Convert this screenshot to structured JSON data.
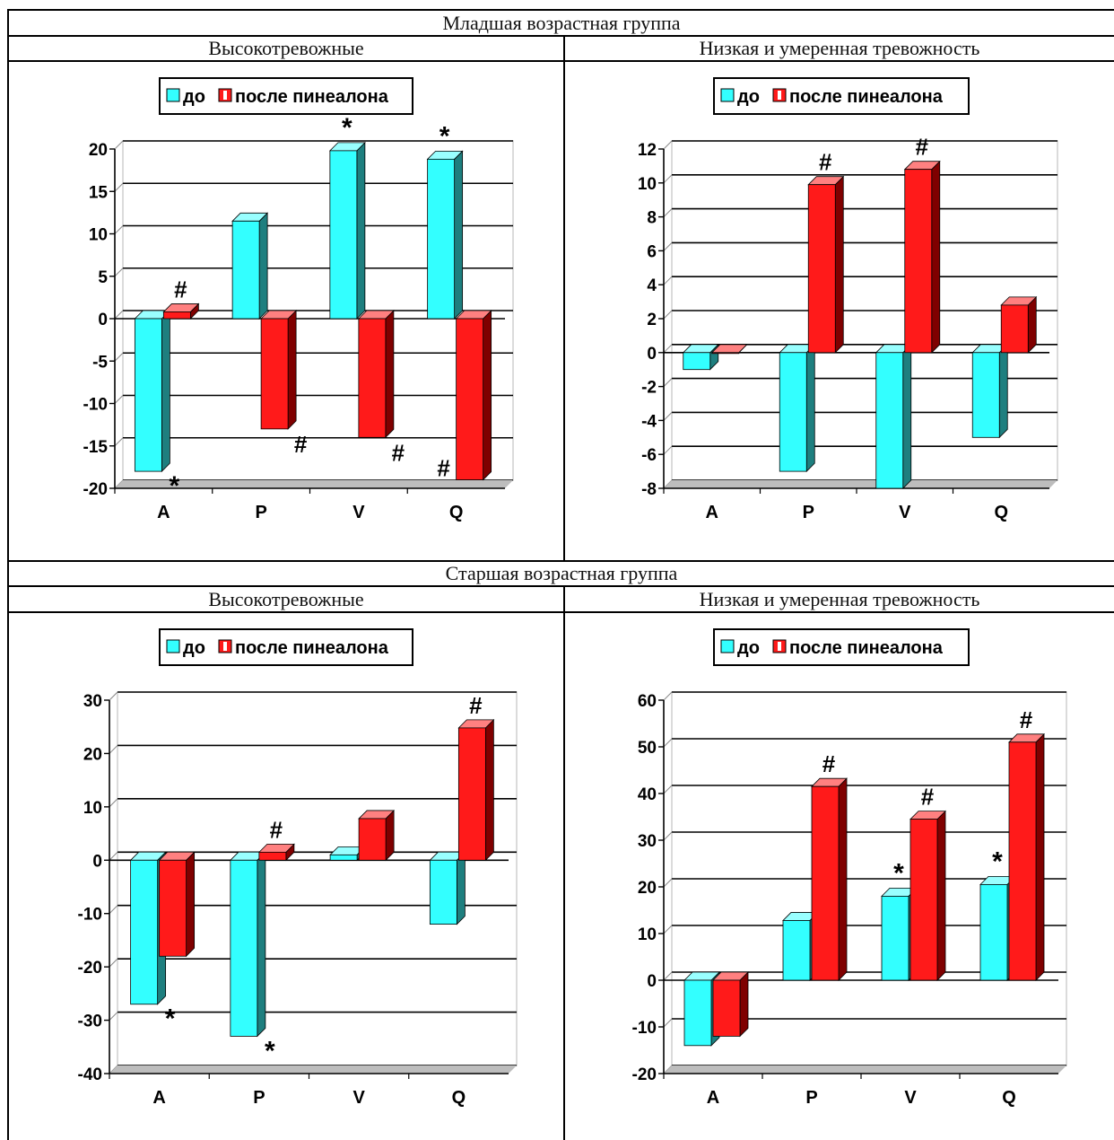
{
  "headers": {
    "young_group": "Младшая возрастная группа",
    "old_group": "Старшая возрастная группа",
    "high_anxiety": "Высокотревожные",
    "low_anxiety": "Низкая и умеренная тревожность"
  },
  "colors": {
    "before": "#33FFFF",
    "before_side": "#1E7F7F",
    "after": "#FF1A1A",
    "after_side": "#7F0000"
  },
  "chart_data": [
    {
      "type": "bar",
      "group": "Младшая возрастная группа",
      "subgroup": "Высокотревожные",
      "categories": [
        "A",
        "P",
        "V",
        "Q"
      ],
      "series": [
        {
          "name": "до",
          "values": [
            -18,
            11.5,
            19.8,
            18.8
          ]
        },
        {
          "name": "после пинеалона",
          "values": [
            0.8,
            -13,
            -14,
            -19
          ]
        }
      ],
      "ylim": [
        -20,
        20
      ],
      "yticks": [
        20,
        15,
        10,
        5,
        0,
        -5,
        -10,
        -15,
        -20
      ],
      "annotations": [
        {
          "category": "A",
          "series": "после пинеалона",
          "text": "#",
          "where": "above"
        },
        {
          "category": "A",
          "series": "до",
          "text": "*",
          "where": "below"
        },
        {
          "category": "P",
          "series": "после пинеалона",
          "text": "#",
          "where": "below"
        },
        {
          "category": "V",
          "series": "до",
          "text": "*",
          "where": "above"
        },
        {
          "category": "V",
          "series": "после пинеалона",
          "text": "#",
          "where": "below"
        },
        {
          "category": "Q",
          "series": "до",
          "text": "*",
          "where": "above"
        },
        {
          "category": "Q",
          "series": "после пинеалона",
          "text": "#",
          "where": "beside"
        }
      ],
      "legend": {
        "items": [
          "до",
          "после пинеалона"
        ],
        "placement": "top"
      },
      "grid": true
    },
    {
      "type": "bar",
      "group": "Младшая возрастная группа",
      "subgroup": "Низкая и умеренная тревожность",
      "categories": [
        "A",
        "P",
        "V",
        "Q"
      ],
      "series": [
        {
          "name": "до",
          "values": [
            -1,
            -7,
            -8,
            -5
          ]
        },
        {
          "name": "после пинеалона",
          "values": [
            0,
            9.9,
            10.8,
            2.8
          ]
        }
      ],
      "ylim": [
        -8,
        12
      ],
      "yticks": [
        12,
        10,
        8,
        6,
        4,
        2,
        0,
        -2,
        -4,
        -6,
        -8
      ],
      "annotations": [
        {
          "category": "P",
          "series": "после пинеалона",
          "text": "#",
          "where": "above"
        },
        {
          "category": "V",
          "series": "после пинеалона",
          "text": "#",
          "where": "above"
        }
      ],
      "legend": {
        "items": [
          "до",
          "после пинеалона"
        ],
        "placement": "top"
      },
      "grid": true
    },
    {
      "type": "bar",
      "group": "Старшая возрастная группа",
      "subgroup": "Высокотревожные",
      "categories": [
        "A",
        "P",
        "V",
        "Q"
      ],
      "series": [
        {
          "name": "до",
          "values": [
            -27,
            -33,
            1,
            -12
          ]
        },
        {
          "name": "после пинеалона",
          "values": [
            -18,
            1.5,
            7.8,
            24.8
          ]
        }
      ],
      "ylim": [
        -40,
        30
      ],
      "yticks": [
        30,
        20,
        10,
        0,
        -10,
        -20,
        -30,
        -40
      ],
      "annotations": [
        {
          "category": "A",
          "series": "до",
          "text": "*",
          "where": "below"
        },
        {
          "category": "P",
          "series": "до",
          "text": "*",
          "where": "below"
        },
        {
          "category": "P",
          "series": "после пинеалона",
          "text": "#",
          "where": "above"
        },
        {
          "category": "Q",
          "series": "после пинеалона",
          "text": "#",
          "where": "above"
        }
      ],
      "legend": {
        "items": [
          "до",
          "после пинеалона"
        ],
        "placement": "top"
      },
      "grid": true
    },
    {
      "type": "bar",
      "group": "Старшая возрастная группа",
      "subgroup": "Низкая и умеренная тревожность",
      "categories": [
        "A",
        "P",
        "V",
        "Q"
      ],
      "series": [
        {
          "name": "до",
          "values": [
            -14,
            12.8,
            18,
            20.5
          ]
        },
        {
          "name": "после пинеалона",
          "values": [
            -12,
            41.5,
            34.5,
            51
          ]
        }
      ],
      "ylim": [
        -20,
        60
      ],
      "yticks": [
        60,
        50,
        40,
        30,
        20,
        10,
        0,
        -10,
        -20
      ],
      "annotations": [
        {
          "category": "P",
          "series": "после пинеалона",
          "text": "#",
          "where": "above"
        },
        {
          "category": "V",
          "series": "после пинеалона",
          "text": "#",
          "where": "above"
        },
        {
          "category": "V",
          "series": "до",
          "text": "*",
          "where": "above"
        },
        {
          "category": "Q",
          "series": "после пинеалона",
          "text": "#",
          "where": "above"
        },
        {
          "category": "Q",
          "series": "до",
          "text": "*",
          "where": "above"
        }
      ],
      "legend": {
        "items": [
          "до",
          "после пинеалона"
        ],
        "placement": "top"
      },
      "grid": true
    }
  ]
}
